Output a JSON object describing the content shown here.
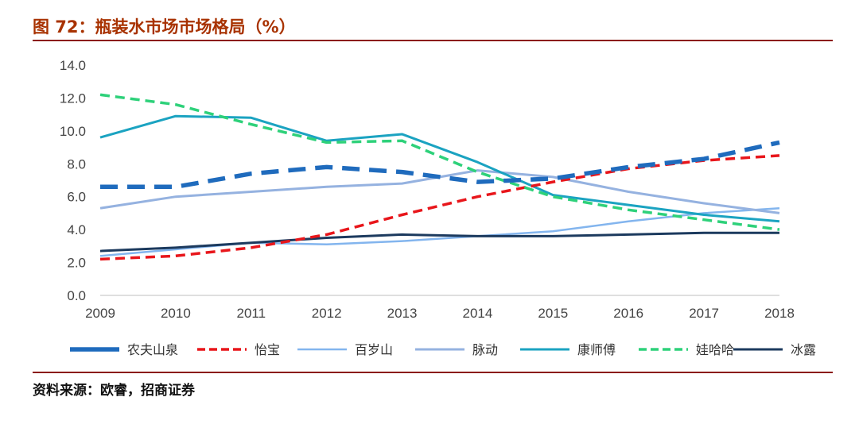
{
  "figure": {
    "title": "图 72：瓶装水市场市场格局（%）",
    "source": "资料来源：欧睿，招商证券"
  },
  "colors": {
    "title": "#a83200",
    "rule": "#8b1a0e"
  },
  "chart_data": {
    "type": "line",
    "title": "",
    "xlabel": "",
    "ylabel": "",
    "ylim": [
      0,
      14
    ],
    "yticks": [
      "0.0",
      "2.0",
      "4.0",
      "6.0",
      "8.0",
      "10.0",
      "12.0",
      "14.0"
    ],
    "grid": false,
    "legend_position": "bottom",
    "x": [
      "2009",
      "2010",
      "2011",
      "2012",
      "2013",
      "2014",
      "2015",
      "2016",
      "2017",
      "2018"
    ],
    "series": [
      {
        "name": "农夫山泉",
        "color": "#1f6bbd",
        "style": "dashed-thick",
        "values": [
          6.6,
          6.6,
          7.4,
          7.8,
          7.5,
          6.9,
          7.1,
          7.8,
          8.3,
          9.3
        ]
      },
      {
        "name": "怡宝",
        "color": "#e8161b",
        "style": "dashed",
        "values": [
          2.2,
          2.4,
          2.9,
          3.7,
          4.9,
          6.0,
          6.9,
          7.7,
          8.2,
          8.5
        ]
      },
      {
        "name": "百岁山",
        "color": "#83b5ee",
        "style": "solid-thin",
        "values": [
          2.4,
          2.8,
          3.2,
          3.1,
          3.3,
          3.6,
          3.9,
          4.5,
          5.0,
          5.3
        ]
      },
      {
        "name": "脉动",
        "color": "#95b2e0",
        "style": "solid",
        "values": [
          5.3,
          6.0,
          6.3,
          6.6,
          6.8,
          7.6,
          7.2,
          6.3,
          5.6,
          5.0
        ]
      },
      {
        "name": "康师傅",
        "color": "#1ba3c1",
        "style": "solid",
        "values": [
          9.6,
          10.9,
          10.8,
          9.4,
          9.8,
          8.1,
          6.1,
          5.5,
          4.9,
          4.5
        ]
      },
      {
        "name": "娃哈哈",
        "color": "#2ed17a",
        "style": "dashed",
        "values": [
          12.2,
          11.6,
          10.4,
          9.3,
          9.4,
          7.5,
          6.0,
          5.2,
          4.6,
          4.0
        ]
      },
      {
        "name": "冰露",
        "color": "#1c3a5e",
        "style": "solid",
        "values": [
          2.7,
          2.9,
          3.2,
          3.5,
          3.7,
          3.6,
          3.6,
          3.7,
          3.8,
          3.8
        ]
      }
    ]
  }
}
